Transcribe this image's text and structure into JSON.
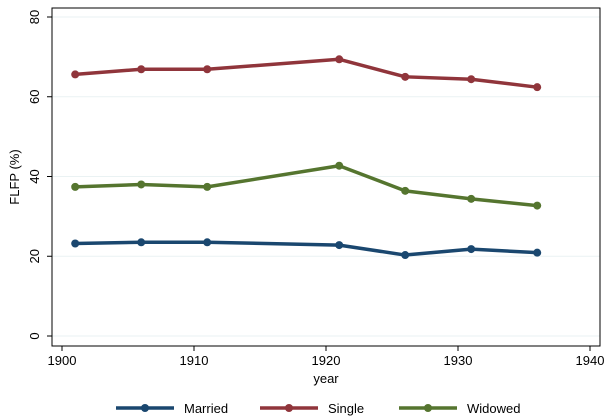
{
  "chart_data": {
    "type": "line",
    "xlabel": "year",
    "ylabel": "FLFP (%)",
    "xlim": [
      1900,
      1940
    ],
    "ylim": [
      0,
      80
    ],
    "xticks": [
      1900,
      1910,
      1920,
      1930,
      1940
    ],
    "yticks": [
      0,
      20,
      40,
      60,
      80
    ],
    "x": [
      1901,
      1906,
      1911,
      1921,
      1926,
      1931,
      1936
    ],
    "grid": true,
    "legend_position": "bottom",
    "series": [
      {
        "name": "Married",
        "color": "#1a476f",
        "values": [
          23.2,
          23.5,
          23.5,
          22.8,
          20.3,
          21.8,
          20.9
        ]
      },
      {
        "name": "Single",
        "color": "#90353b",
        "values": [
          65.6,
          66.9,
          66.9,
          69.4,
          65.0,
          64.4,
          62.4
        ]
      },
      {
        "name": "Widowed",
        "color": "#55752f",
        "values": [
          37.4,
          38.0,
          37.4,
          42.7,
          36.4,
          34.4,
          32.7
        ]
      }
    ]
  }
}
